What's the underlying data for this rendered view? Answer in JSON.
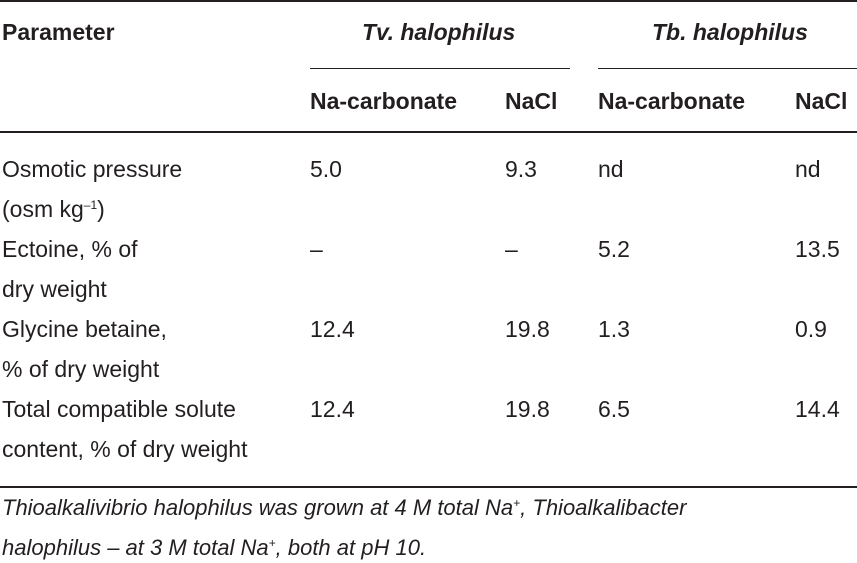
{
  "header": {
    "parameter": "Parameter",
    "group1": "Tv. halophilus",
    "group2": "Tb. halophilus",
    "sub": [
      "Na-carbonate",
      "NaCl",
      "Na-carbonate",
      "NaCl"
    ]
  },
  "rows": [
    {
      "label": [
        "Osmotic pressure",
        "(osm kg–1)"
      ],
      "values": [
        "5.0",
        "9.3",
        "nd",
        "nd"
      ]
    },
    {
      "label": [
        "Ectoine, % of",
        "dry weight"
      ],
      "values": [
        "–",
        "–",
        "5.2",
        "13.5"
      ]
    },
    {
      "label": [
        "Glycine betaine,",
        "% of dry weight"
      ],
      "values": [
        "12.4",
        "19.8",
        "1.3",
        "0.9"
      ]
    },
    {
      "label": [
        "Total compatible solute",
        "content, % of dry weight"
      ],
      "values": [
        "12.4",
        "19.8",
        "6.5",
        "14.4"
      ]
    }
  ],
  "footnote": {
    "part1": "Thioalkalivibrio halophilus was grown at 4 M total Na",
    "sup1": "+",
    "part2": ", Thioalkalibacter",
    "part3": "halophilus – at 3 M total Na",
    "sup2": "+",
    "part4": ", both at pH 10."
  }
}
